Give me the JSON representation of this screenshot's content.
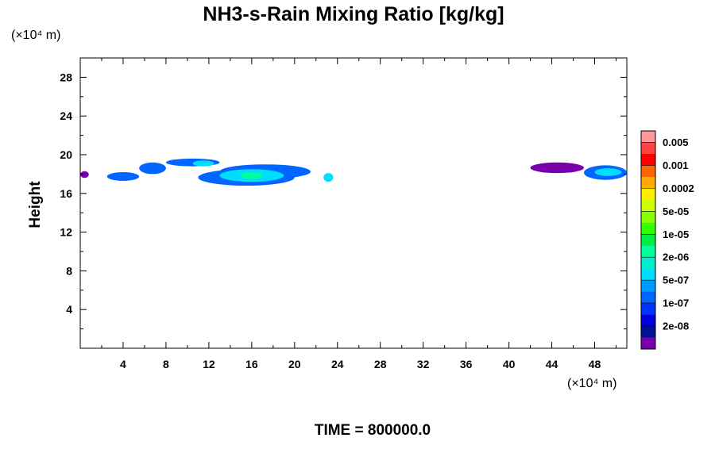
{
  "chart_data": {
    "type": "heatmap",
    "title": "NH3-s-Rain Mixing Ratio [kg/kg]",
    "xlabel": "",
    "ylabel": "Height",
    "x_unit": "(×10⁴ m)",
    "y_unit": "(×10⁴ m)",
    "xlim": [
      0,
      51
    ],
    "ylim": [
      0,
      30
    ],
    "x_ticks": [
      4,
      8,
      12,
      16,
      20,
      24,
      28,
      32,
      36,
      40,
      44,
      48
    ],
    "y_ticks": [
      4,
      8,
      12,
      16,
      20,
      24,
      28
    ],
    "footer": "TIME = 800000.0",
    "colorbar": {
      "labels": [
        "0.005",
        "0.001",
        "0.0002",
        "5e-05",
        "1e-05",
        "2e-06",
        "5e-07",
        "1e-07",
        "2e-08"
      ],
      "colors": [
        "#ff9999",
        "#ff4444",
        "#ff0000",
        "#ff6600",
        "#ffaa00",
        "#ffee00",
        "#ccff00",
        "#88ff00",
        "#33ff00",
        "#00ee44",
        "#00ff99",
        "#00eecc",
        "#00ddff",
        "#0099ff",
        "#0066ff",
        "#0033ff",
        "#0000dd",
        "#001199",
        "#7700aa"
      ]
    },
    "regions": [
      {
        "x": [
          0.0,
          0.8
        ],
        "y": [
          17.6,
          18.3
        ],
        "level": "2e-08"
      },
      {
        "x": [
          2.5,
          5.5
        ],
        "y": [
          17.3,
          18.2
        ],
        "level": "1e-07"
      },
      {
        "x": [
          5.5,
          8.0
        ],
        "y": [
          18.0,
          19.2
        ],
        "level": "1e-07"
      },
      {
        "x": [
          8.0,
          13.0
        ],
        "y": [
          18.8,
          19.6
        ],
        "level": "1e-07"
      },
      {
        "x": [
          11.0,
          20.0
        ],
        "y": [
          16.8,
          18.5
        ],
        "level": "1e-07"
      },
      {
        "x": [
          13.0,
          21.5
        ],
        "y": [
          17.5,
          19.0
        ],
        "level": "1e-07"
      },
      {
        "x": [
          10.5,
          12.5
        ],
        "y": [
          18.8,
          19.4
        ],
        "level": "5e-07"
      },
      {
        "x": [
          13.0,
          19.0
        ],
        "y": [
          17.2,
          18.5
        ],
        "level": "5e-07"
      },
      {
        "x": [
          15.0,
          17.0
        ],
        "y": [
          17.5,
          18.2
        ],
        "level": "2e-06"
      },
      {
        "x": [
          22.7,
          23.6
        ],
        "y": [
          17.2,
          18.1
        ],
        "level": "5e-07"
      },
      {
        "x": [
          42.0,
          47.0
        ],
        "y": [
          18.1,
          19.2
        ],
        "level": "2e-08"
      },
      {
        "x": [
          47.0,
          51.0
        ],
        "y": [
          17.4,
          18.9
        ],
        "level": "1e-07"
      },
      {
        "x": [
          48.0,
          50.5
        ],
        "y": [
          17.8,
          18.6
        ],
        "level": "5e-07"
      }
    ]
  }
}
